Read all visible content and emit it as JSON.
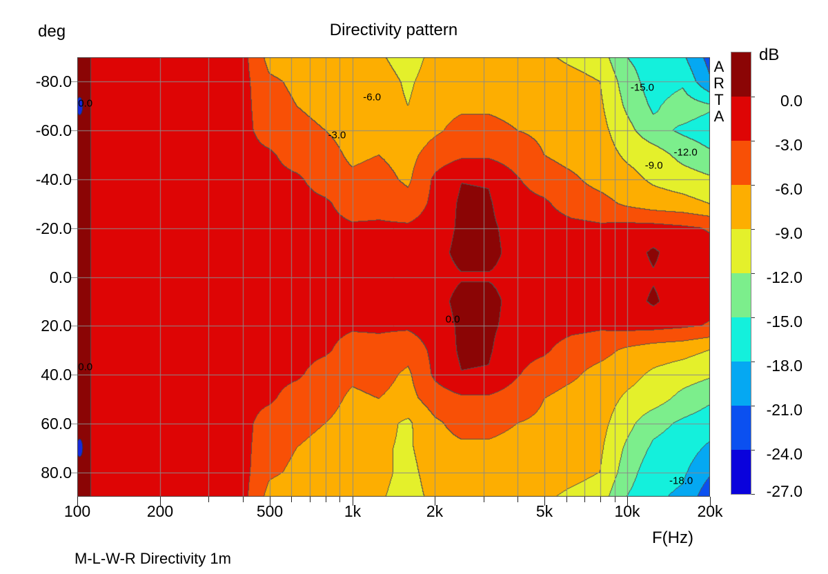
{
  "title": "Directivity pattern",
  "footer": "M-L-W-R Directivity 1m",
  "watermark": "ARTA",
  "axes": {
    "y_label": "deg",
    "x_label": "F(Hz)",
    "y_range": [
      -90,
      90
    ],
    "x_range": [
      100,
      20000
    ],
    "x_scale": "log",
    "grid": true,
    "y_ticks": [
      {
        "a": -80,
        "label": "-80.0"
      },
      {
        "a": -60,
        "label": "-60.0"
      },
      {
        "a": -40,
        "label": "-40.0"
      },
      {
        "a": -20,
        "label": "-20.0"
      },
      {
        "a": 0,
        "label": "0.0"
      },
      {
        "a": 20,
        "label": "20.0"
      },
      {
        "a": 40,
        "label": "40.0"
      },
      {
        "a": 60,
        "label": "60.0"
      },
      {
        "a": 80,
        "label": "80.0"
      }
    ],
    "x_major_ticks": [
      {
        "f": 100,
        "label": "100"
      },
      {
        "f": 200,
        "label": "200"
      },
      {
        "f": 500,
        "label": "500"
      },
      {
        "f": 1000,
        "label": "1k"
      },
      {
        "f": 2000,
        "label": "2k"
      },
      {
        "f": 5000,
        "label": "5k"
      },
      {
        "f": 10000,
        "label": "10k"
      },
      {
        "f": 20000,
        "label": "20k"
      }
    ],
    "x_minor_ticks": [
      300,
      400,
      600,
      700,
      800,
      900,
      3000,
      4000,
      6000,
      7000,
      8000,
      9000
    ]
  },
  "legend": {
    "title": "dB",
    "labels": [
      "0.0",
      "-3.0",
      "-6.0",
      "-9.0",
      "-12.0",
      "-15.0",
      "-18.0",
      "-21.0",
      "-24.0",
      "-27.0"
    ]
  },
  "chart_data": {
    "type": "heatmap",
    "title": "Directivity pattern",
    "xlabel": "F(Hz)",
    "ylabel": "deg",
    "value_unit": "dB",
    "x_frequencies_hz": [
      100,
      125,
      160,
      200,
      250,
      315,
      400,
      500,
      630,
      800,
      1000,
      1250,
      1600,
      2000,
      2500,
      3150,
      4000,
      5000,
      6300,
      8000,
      10000,
      12500,
      16000,
      20000
    ],
    "y_angles_deg": [
      -90,
      -80,
      -70,
      -60,
      -50,
      -40,
      -30,
      -20,
      -10,
      0,
      10,
      20,
      30,
      40,
      50,
      60,
      70,
      80,
      90
    ],
    "values_db": [
      [
        1,
        -1,
        -1.5,
        -1.5,
        -1.5,
        -1.5,
        -2,
        -7,
        -7.5,
        -7.5,
        -8,
        -8.5,
        -10.5,
        -8,
        -7.5,
        -7,
        -7.5,
        -8.5,
        -9.6,
        -10.5,
        -15,
        -16.5,
        -17.5,
        -22
      ],
      [
        1,
        -1,
        -1.5,
        -1.5,
        -1.5,
        -1.5,
        -2,
        -5.5,
        -6.5,
        -7,
        -7.5,
        -7.5,
        -9.5,
        -7.5,
        -7,
        -6.5,
        -7,
        -7.5,
        -8,
        -9,
        -13.5,
        -16.5,
        -15.5,
        -20.5
      ],
      [
        1,
        -1,
        -1.5,
        -1.5,
        -1.5,
        -1.5,
        -2,
        -5,
        -6,
        -7,
        -7.5,
        -7.5,
        -9,
        -7,
        -6.5,
        -6.5,
        -7,
        -7,
        -7.5,
        -8.5,
        -12.5,
        -15.5,
        -13.5,
        -14.5
      ],
      [
        1,
        -1,
        -1.5,
        -1.5,
        -1.5,
        -1.5,
        -2,
        -4.5,
        -5,
        -6,
        -7,
        -7,
        -8,
        -6.5,
        -5,
        -5,
        -6,
        -6.5,
        -7.5,
        -8,
        -11,
        -14,
        -15.5,
        -16.5
      ],
      [
        1,
        -1,
        -1.5,
        -1.5,
        -1.5,
        -1.5,
        -2,
        -2.5,
        -4.5,
        -5,
        -6.5,
        -6,
        -7,
        -4.5,
        -3.5,
        -3.5,
        -4.5,
        -6,
        -7,
        -7.5,
        -9.5,
        -10.5,
        -13,
        -14.5
      ],
      [
        1,
        -1,
        -1.5,
        -1.5,
        -1.5,
        -1.5,
        -2,
        -2,
        -2.5,
        -4.5,
        -5.5,
        -5,
        -6.5,
        -2.5,
        -0.1,
        -0.2,
        -2.8,
        -4.5,
        -5.5,
        -7,
        -8,
        -9.5,
        -10.5,
        -11.5
      ],
      [
        1,
        -1,
        -1.5,
        -1.5,
        -1.5,
        -1.5,
        -1.5,
        -2,
        -2,
        -2.5,
        -4.5,
        -4,
        -5,
        -2.2,
        0.5,
        0.3,
        -2,
        -2.5,
        -4.5,
        -5,
        -6.5,
        -7.5,
        -8,
        -9
      ],
      [
        1,
        -1,
        -1.5,
        -1.5,
        -1.5,
        -1.5,
        -1.5,
        -1.5,
        -2,
        -2,
        -2.5,
        -2.5,
        -2.5,
        -1.5,
        0.5,
        0.5,
        -1,
        -1.5,
        -2,
        -2.5,
        -2,
        -2,
        -2.5,
        -3.2
      ],
      [
        1,
        -1,
        -1.5,
        -1.5,
        -1.5,
        -1.5,
        -1.5,
        -1.5,
        -1.5,
        -2,
        -2,
        -2,
        -2,
        -1,
        0.8,
        0.8,
        -1,
        -1,
        -1.5,
        -2,
        -1.5,
        0.5,
        -1.8,
        -2.2
      ],
      [
        1,
        -1,
        -1.5,
        -1.5,
        -1.5,
        -1.5,
        -1.5,
        -1.5,
        -1.5,
        -1.5,
        -2,
        -2,
        -2,
        -1,
        -0.2,
        -0.2,
        -0.8,
        -1,
        -1,
        -1.5,
        -1.5,
        -0.3,
        -1.5,
        -2
      ],
      [
        1,
        -1,
        -1.5,
        -1.5,
        -1.5,
        -1.5,
        -1.5,
        -1.5,
        -1.5,
        -2,
        -2,
        -2,
        -2,
        -1,
        0.8,
        0.8,
        -1,
        -1,
        -1.5,
        -2,
        -1.5,
        0.5,
        -1.8,
        -2.2
      ],
      [
        1,
        -1,
        -1.5,
        -1.5,
        -1.5,
        -1.5,
        -1.5,
        -1.5,
        -2,
        -2,
        -2.5,
        -2.5,
        -2.5,
        -1.5,
        0.5,
        0.5,
        -1,
        -1.5,
        -2,
        -2.5,
        -2,
        -2,
        -2.5,
        -3.2
      ],
      [
        1,
        -1,
        -1.5,
        -1.5,
        -1.5,
        -1.5,
        -1.5,
        -2,
        -2,
        -2.5,
        -4.5,
        -4,
        -5,
        -2.2,
        0.5,
        0.3,
        -2,
        -2.5,
        -4.5,
        -5,
        -6.5,
        -7.5,
        -8,
        -9
      ],
      [
        1,
        -1,
        -1.5,
        -1.5,
        -1.5,
        -1.5,
        -2,
        -2,
        -2.5,
        -4.5,
        -5.5,
        -5,
        -6.5,
        -2.5,
        -0.1,
        -0.2,
        -2.8,
        -4.5,
        -5.5,
        -7,
        -8,
        -9.5,
        -10.5,
        -11.5
      ],
      [
        1,
        -1,
        -1.5,
        -1.5,
        -1.5,
        -1.5,
        -2,
        -2.5,
        -4.5,
        -5,
        -6.5,
        -6,
        -7,
        -4.5,
        -3.5,
        -3.5,
        -4.5,
        -6,
        -7,
        -7.5,
        -9.5,
        -10.5,
        -13,
        -14.5
      ],
      [
        1,
        -1,
        -1.5,
        -1.5,
        -1.5,
        -1.5,
        -2,
        -4.5,
        -5,
        -6,
        -7,
        -8,
        -9.5,
        -6.5,
        -5,
        -5,
        -6,
        -6.5,
        -7.5,
        -8,
        -11,
        -14,
        -15.5,
        -16.5
      ],
      [
        1,
        -1,
        -1.5,
        -1.5,
        -1.5,
        -1.5,
        -2,
        -5,
        -6,
        -7,
        -7.5,
        -8.5,
        -9.5,
        -7,
        -6.5,
        -6.5,
        -7,
        -7,
        -7.5,
        -8.5,
        -12.5,
        -15.5,
        -16.5,
        -18.5
      ],
      [
        1,
        -1,
        -1.5,
        -1.5,
        -1.5,
        -1.5,
        -2,
        -5.5,
        -6.5,
        -7,
        -7.5,
        -8,
        -10,
        -7.5,
        -7,
        -6.5,
        -7,
        -7.5,
        -8,
        -9,
        -13.5,
        -17,
        -17.5,
        -20.5
      ],
      [
        1,
        -1,
        -1.5,
        -1.5,
        -1.5,
        -1.5,
        -2,
        -7,
        -7.5,
        -7.5,
        -8,
        -8.5,
        -10.5,
        -8,
        -7.5,
        -7,
        -7.5,
        -8.5,
        -9.6,
        -10.5,
        -15,
        -17.5,
        -18.5,
        -23
      ]
    ],
    "band_thresholds_db": [
      0,
      -3,
      -6,
      -9,
      -12,
      -15,
      -18,
      -21,
      -24,
      -27
    ],
    "band_colors": [
      "#8B0505",
      "#DE0505",
      "#F85006",
      "#FDAE01",
      "#E4F02B",
      "#7CEE8C",
      "#14F0DC",
      "#05A8F2",
      "#0B50F0",
      "#0A02DC"
    ],
    "grid_color": "#8a8a8a",
    "contour_line_color": "#505050",
    "contour_labels": [
      {
        "text": "0.0",
        "f": 107,
        "a": -71
      },
      {
        "text": "-6.0",
        "f": 1180,
        "a": -73.5
      },
      {
        "text": "-3.0",
        "f": 880,
        "a": -58
      },
      {
        "text": "-15.0",
        "f": 11350,
        "a": -77.5
      },
      {
        "text": "-12.0",
        "f": 16300,
        "a": -51
      },
      {
        "text": "-9.0",
        "f": 12500,
        "a": -45.5
      },
      {
        "text": "0.0",
        "f": 2320,
        "a": 17.5
      },
      {
        "text": "0.0",
        "f": 107,
        "a": 37
      },
      {
        "text": "-18.0",
        "f": 15700,
        "a": 83.5
      }
    ],
    "artifact_spots": [
      {
        "f": 102,
        "a": -70,
        "color": "#1528DC"
      },
      {
        "f": 102,
        "a": 70,
        "color": "#1528DC"
      }
    ]
  }
}
